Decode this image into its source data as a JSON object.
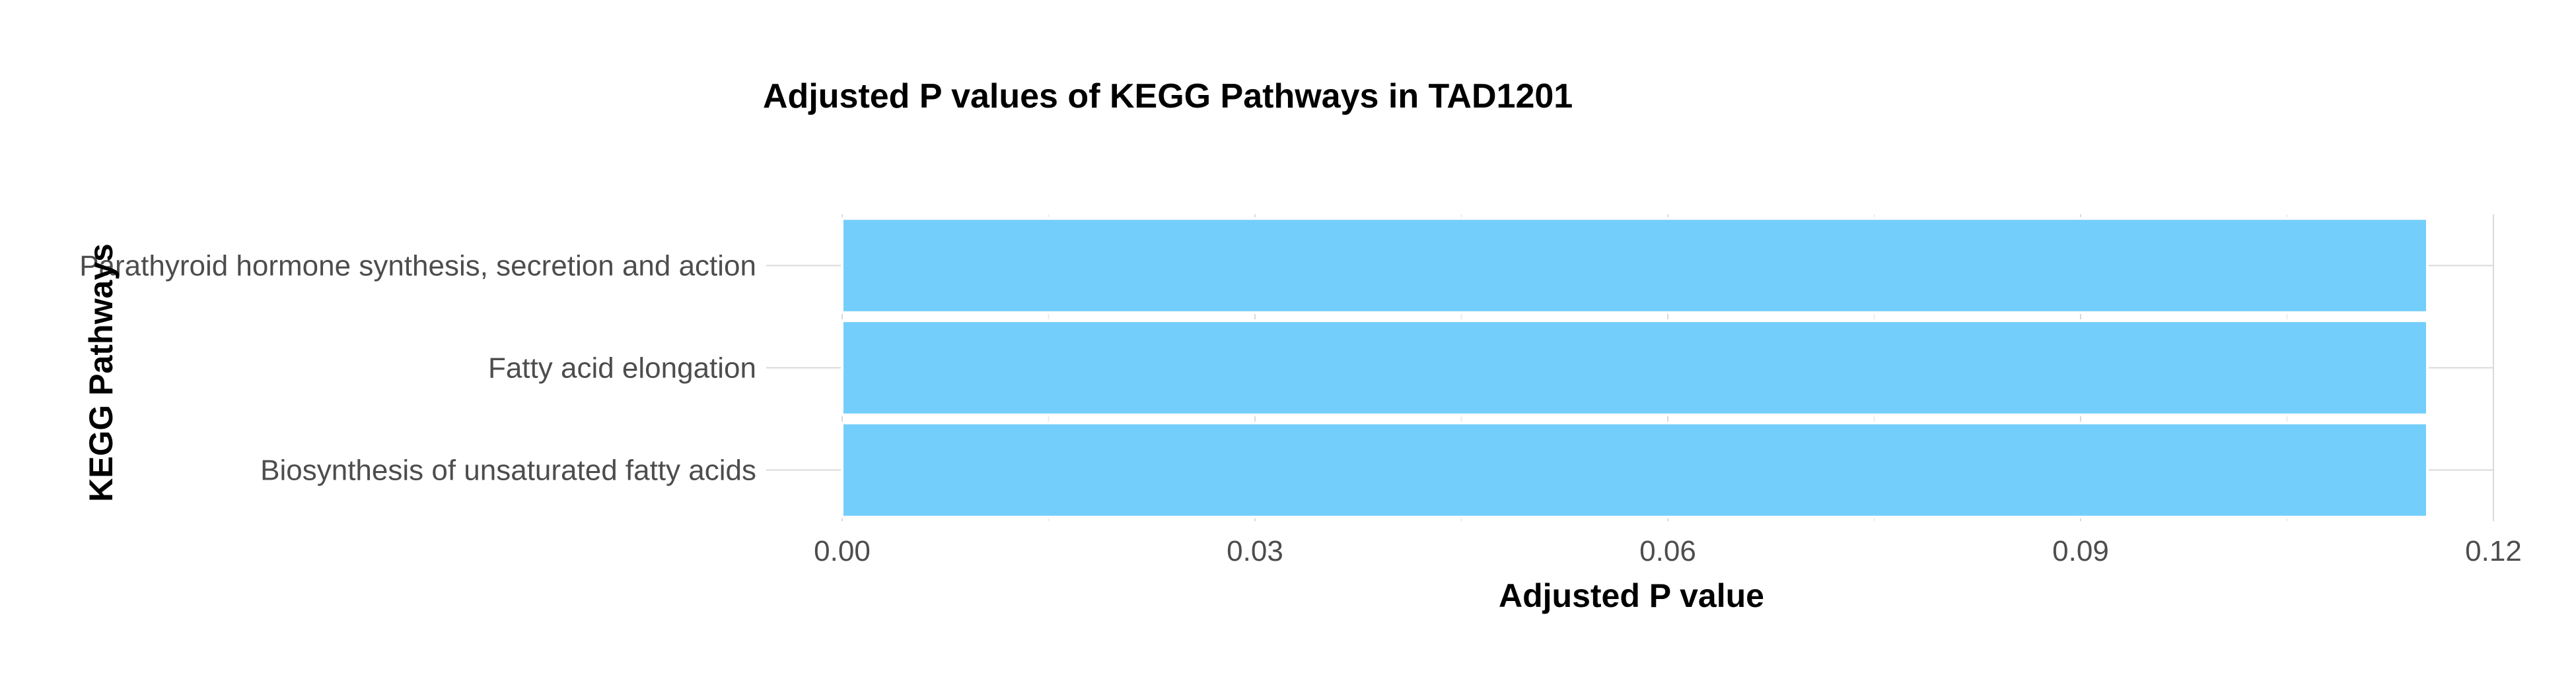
{
  "chart_data": {
    "type": "bar",
    "orientation": "horizontal",
    "title": "Adjusted P values of KEGG Pathways in TAD1201",
    "xlabel": "Adjusted P value",
    "ylabel": "KEGG Pathways",
    "categories": [
      "Parathyroid hormone synthesis, secretion and action",
      "Fatty acid elongation",
      "Biosynthesis of unsaturated fatty acids"
    ],
    "values": [
      0.1152,
      0.1152,
      0.1152
    ],
    "xlim": [
      0,
      0.12
    ],
    "xticks": [
      0,
      0.03,
      0.06,
      0.09,
      0.12
    ],
    "xtick_labels": [
      "0.00",
      "0.03",
      "0.06",
      "0.09",
      "0.12"
    ],
    "grid": true,
    "legend": "none",
    "bar_color": "#71CDFC"
  }
}
